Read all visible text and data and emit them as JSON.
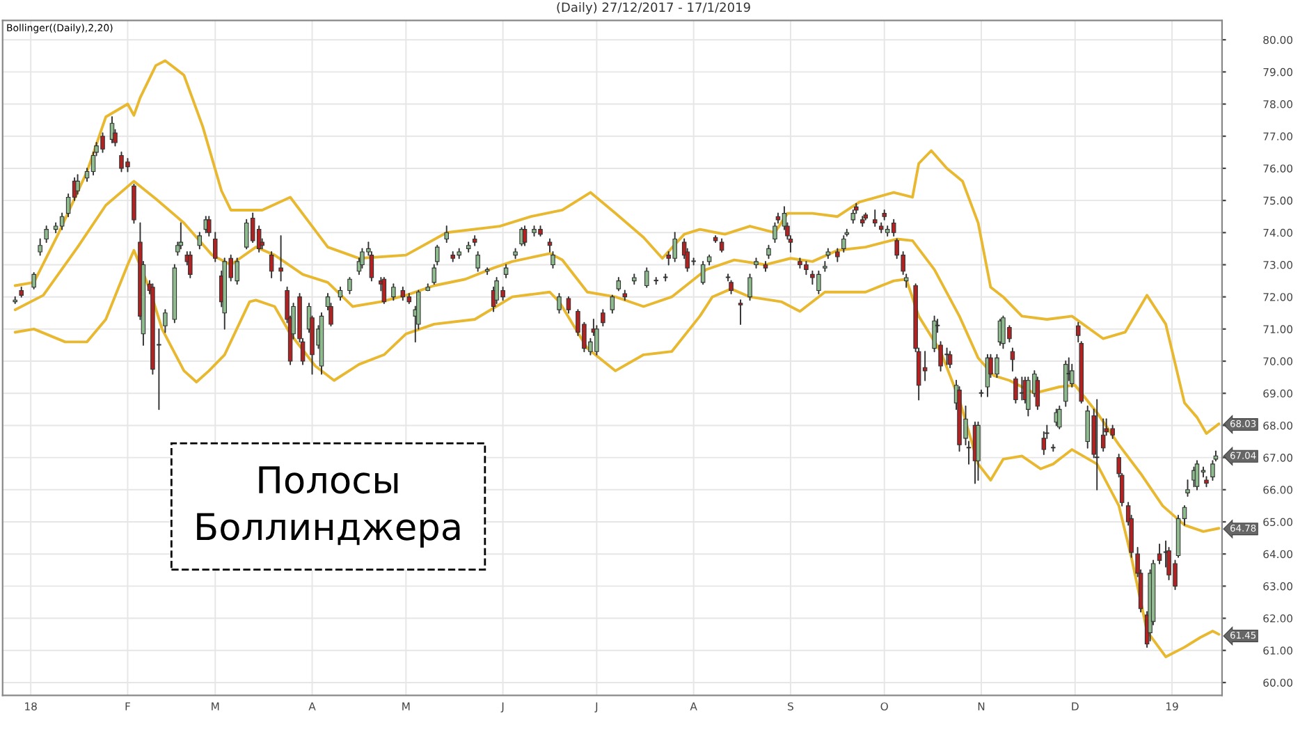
{
  "chart_data": {
    "type": "candlestick",
    "title": "(Daily) 27/12/2017 - 17/1/2019",
    "annotations": [
      "Bollinger((Daily),2,20)",
      "Полосы\nБоллинджера",
      {
        "text": "68.03",
        "x": "2019-01-17",
        "y": 68.03
      },
      {
        "text": "67.04",
        "x": "2019-01-17",
        "y": 67.04
      },
      {
        "text": "64.78",
        "x": "2019-01-17",
        "y": 64.78
      },
      {
        "text": "61.45",
        "x": "2019-01-17",
        "y": 61.45
      }
    ],
    "x": [
      "2017-12-27",
      "2017-12-29",
      "2018-01-02",
      "2018-01-04",
      "2018-01-06",
      "2018-01-09",
      "2018-01-11",
      "2018-01-13",
      "2018-01-15",
      "2018-01-16",
      "2018-01-19",
      "2018-01-21",
      "2018-01-22",
      "2018-01-24",
      "2018-01-27",
      "2018-01-28",
      "2018-01-30",
      "2018-02-01",
      "2018-02-03",
      "2018-02-05",
      "2018-02-06",
      "2018-02-08",
      "2018-02-09",
      "2018-02-11",
      "2018-02-13",
      "2018-02-16",
      "2018-02-17",
      "2018-02-18",
      "2018-02-20",
      "2018-02-21",
      "2018-02-24",
      "2018-02-26",
      "2018-02-27",
      "2018-03-01",
      "2018-03-03",
      "2018-03-04",
      "2018-03-06",
      "2018-03-08",
      "2018-03-11",
      "2018-03-13",
      "2018-03-15",
      "2018-03-16",
      "2018-03-19",
      "2018-03-22",
      "2018-03-24",
      "2018-03-25",
      "2018-03-26",
      "2018-03-28",
      "2018-03-29",
      "2018-03-31",
      "2018-04-01",
      "2018-04-03",
      "2018-04-04",
      "2018-04-06",
      "2018-04-07",
      "2018-04-10",
      "2018-04-13",
      "2018-04-16",
      "2018-04-17",
      "2018-04-19",
      "2018-04-20",
      "2018-04-23",
      "2018-04-24",
      "2018-04-27",
      "2018-04-30",
      "2018-05-02",
      "2018-05-04",
      "2018-05-05",
      "2018-05-08",
      "2018-05-10",
      "2018-05-11",
      "2018-05-14",
      "2018-05-16",
      "2018-05-18",
      "2018-05-21",
      "2018-05-23",
      "2018-05-24",
      "2018-05-27",
      "2018-05-29",
      "2018-05-30",
      "2018-06-01",
      "2018-06-02",
      "2018-06-05",
      "2018-06-07",
      "2018-06-08",
      "2018-06-11",
      "2018-06-13",
      "2018-06-16",
      "2018-06-17",
      "2018-06-19",
      "2018-06-22",
      "2018-06-25",
      "2018-06-27",
      "2018-06-29",
      "2018-06-30",
      "2018-07-01",
      "2018-07-03",
      "2018-07-06",
      "2018-07-08",
      "2018-07-10",
      "2018-07-13",
      "2018-07-17",
      "2018-07-20",
      "2018-07-23",
      "2018-07-24",
      "2018-07-26",
      "2018-07-29",
      "2018-07-30",
      "2018-08-01",
      "2018-08-04",
      "2018-08-06",
      "2018-08-08",
      "2018-08-10",
      "2018-08-12",
      "2018-08-13",
      "2018-08-16",
      "2018-08-19",
      "2018-08-21",
      "2018-08-24",
      "2018-08-25",
      "2018-08-27",
      "2018-08-28",
      "2018-08-30",
      "2018-08-31",
      "2018-09-01",
      "2018-09-04",
      "2018-09-06",
      "2018-09-08",
      "2018-09-10",
      "2018-09-12",
      "2018-09-13",
      "2018-09-16",
      "2018-09-18",
      "2018-09-19",
      "2018-09-21",
      "2018-09-22",
      "2018-09-24",
      "2018-09-25",
      "2018-09-28",
      "2018-09-30",
      "2018-10-01",
      "2018-10-02",
      "2018-10-04",
      "2018-10-05",
      "2018-10-07",
      "2018-10-08",
      "2018-10-11",
      "2018-10-12",
      "2018-10-14",
      "2018-10-17",
      "2018-10-18",
      "2018-10-19",
      "2018-10-21",
      "2018-10-22",
      "2018-10-24",
      "2018-10-25",
      "2018-10-27",
      "2018-10-28",
      "2018-10-30",
      "2018-10-31",
      "2018-11-01",
      "2018-11-03",
      "2018-11-04",
      "2018-11-06",
      "2018-11-07",
      "2018-11-08",
      "2018-11-10",
      "2018-11-11",
      "2018-11-12",
      "2018-11-14",
      "2018-11-15",
      "2018-11-16",
      "2018-11-18",
      "2018-11-19",
      "2018-11-21",
      "2018-11-22",
      "2018-11-24",
      "2018-11-25",
      "2018-11-26",
      "2018-11-28",
      "2018-11-29",
      "2018-11-30",
      "2018-12-02",
      "2018-12-03",
      "2018-12-05",
      "2018-12-07",
      "2018-12-08",
      "2018-12-10",
      "2018-12-11",
      "2018-12-13",
      "2018-12-15",
      "2018-12-16",
      "2018-12-18",
      "2018-12-19",
      "2018-12-21",
      "2018-12-22",
      "2018-12-24",
      "2018-12-25",
      "2018-12-26",
      "2018-12-28",
      "2018-12-30",
      "2018-12-31",
      "2019-01-02",
      "2019-01-03",
      "2019-01-05",
      "2019-01-06",
      "2019-01-08",
      "2019-01-09",
      "2019-01-11",
      "2019-01-12",
      "2019-01-14",
      "2019-01-15"
    ],
    "ohlc": [
      [
        71.85,
        72.0,
        71.8,
        71.9
      ],
      [
        72.2,
        72.3,
        72.0,
        72.05
      ],
      [
        72.3,
        72.75,
        72.25,
        72.7
      ],
      [
        73.4,
        73.8,
        73.3,
        73.6
      ],
      [
        73.8,
        74.2,
        73.7,
        74.1
      ],
      [
        74.1,
        74.3,
        74.0,
        74.2
      ],
      [
        74.2,
        74.6,
        74.1,
        74.5
      ],
      [
        74.6,
        75.2,
        74.5,
        75.1
      ],
      [
        75.6,
        75.7,
        75.0,
        75.1
      ],
      [
        75.3,
        75.8,
        75.2,
        75.6
      ],
      [
        75.7,
        76.0,
        75.6,
        75.9
      ],
      [
        75.9,
        76.5,
        75.8,
        76.4
      ],
      [
        76.5,
        76.8,
        76.4,
        76.7
      ],
      [
        77.0,
        77.1,
        76.5,
        76.6
      ],
      [
        76.9,
        77.6,
        76.8,
        77.4
      ],
      [
        77.1,
        77.2,
        76.7,
        76.8
      ],
      [
        76.4,
        76.5,
        75.9,
        76.0
      ],
      [
        76.2,
        76.3,
        75.9,
        76.05
      ],
      [
        75.45,
        75.5,
        74.3,
        74.4
      ],
      [
        73.7,
        74.3,
        71.3,
        71.4
      ],
      [
        70.85,
        73.1,
        70.5,
        73.0
      ],
      [
        72.4,
        72.5,
        72.1,
        72.2
      ],
      [
        72.3,
        72.4,
        69.6,
        69.75
      ],
      [
        70.5,
        71.0,
        68.5,
        70.5
      ],
      [
        71.1,
        71.6,
        70.9,
        71.5
      ],
      [
        71.3,
        73.0,
        71.2,
        72.9
      ],
      [
        73.4,
        73.7,
        73.3,
        73.6
      ],
      [
        73.6,
        74.3,
        73.5,
        73.7
      ],
      [
        73.3,
        73.4,
        73.0,
        73.1
      ],
      [
        73.3,
        73.4,
        72.6,
        72.7
      ],
      [
        73.6,
        74.0,
        73.5,
        73.9
      ],
      [
        74.1,
        74.5,
        74.0,
        74.4
      ],
      [
        74.4,
        74.5,
        73.9,
        74.0
      ],
      [
        73.8,
        74.0,
        73.1,
        73.2
      ],
      [
        72.65,
        72.8,
        71.7,
        71.85
      ],
      [
        71.5,
        73.2,
        71.0,
        73.1
      ],
      [
        73.2,
        73.3,
        72.5,
        72.6
      ],
      [
        72.5,
        73.2,
        72.4,
        73.1
      ],
      [
        73.55,
        74.4,
        73.5,
        74.3
      ],
      [
        74.45,
        74.6,
        73.7,
        73.75
      ],
      [
        74.1,
        74.2,
        73.4,
        73.5
      ],
      [
        73.7,
        73.8,
        73.5,
        73.6
      ],
      [
        73.3,
        73.4,
        72.6,
        72.8
      ],
      [
        72.9,
        73.9,
        72.5,
        72.8
      ],
      [
        72.2,
        72.3,
        71.2,
        71.3
      ],
      [
        71.35,
        71.4,
        69.9,
        70.0
      ],
      [
        70.85,
        71.8,
        70.7,
        71.7
      ],
      [
        72.0,
        72.1,
        70.6,
        70.7
      ],
      [
        70.6,
        70.7,
        69.9,
        70.0
      ],
      [
        71.0,
        71.8,
        70.9,
        71.7
      ],
      [
        71.35,
        71.4,
        69.6,
        70.2
      ],
      [
        70.5,
        71.1,
        70.4,
        71.0
      ],
      [
        69.85,
        71.5,
        69.6,
        71.4
      ],
      [
        71.7,
        72.1,
        71.6,
        72.0
      ],
      [
        71.7,
        71.8,
        71.1,
        71.15
      ],
      [
        72.0,
        72.3,
        71.9,
        72.2
      ],
      [
        72.2,
        72.6,
        72.1,
        72.55
      ],
      [
        72.8,
        73.2,
        72.7,
        73.1
      ],
      [
        73.0,
        73.5,
        72.9,
        73.4
      ],
      [
        73.4,
        73.7,
        73.3,
        73.5
      ],
      [
        73.3,
        73.4,
        72.5,
        72.6
      ],
      [
        72.5,
        72.6,
        72.2,
        72.4
      ],
      [
        72.55,
        72.6,
        71.8,
        71.85
      ],
      [
        72.0,
        72.4,
        71.9,
        72.3
      ],
      [
        72.2,
        72.3,
        71.9,
        72.0
      ],
      [
        72.0,
        72.1,
        71.8,
        71.85
      ],
      [
        71.4,
        71.7,
        70.6,
        71.6
      ],
      [
        71.15,
        72.2,
        71.0,
        72.15
      ],
      [
        72.2,
        72.4,
        72.2,
        72.3
      ],
      [
        72.45,
        73.0,
        72.4,
        72.9
      ],
      [
        73.1,
        73.6,
        73.0,
        73.55
      ],
      [
        73.8,
        74.2,
        73.7,
        74.0
      ],
      [
        73.3,
        73.4,
        73.1,
        73.2
      ],
      [
        73.3,
        73.5,
        73.2,
        73.4
      ],
      [
        73.5,
        73.7,
        73.4,
        73.6
      ],
      [
        73.8,
        73.9,
        73.6,
        73.7
      ],
      [
        72.9,
        73.4,
        72.8,
        73.3
      ],
      [
        72.8,
        72.9,
        72.7,
        72.85
      ],
      [
        72.2,
        72.3,
        71.55,
        71.7
      ],
      [
        71.9,
        72.6,
        71.8,
        72.5
      ],
      [
        72.2,
        72.3,
        71.9,
        72.0
      ],
      [
        72.7,
        73.0,
        72.6,
        72.9
      ],
      [
        73.3,
        73.5,
        73.2,
        73.4
      ],
      [
        73.65,
        74.15,
        73.6,
        74.1
      ],
      [
        74.1,
        74.2,
        73.6,
        73.7
      ],
      [
        74.0,
        74.2,
        73.9,
        74.1
      ],
      [
        74.1,
        74.2,
        73.9,
        73.95
      ],
      [
        73.7,
        73.8,
        73.4,
        73.6
      ],
      [
        73.0,
        73.4,
        72.9,
        73.3
      ],
      [
        71.6,
        72.1,
        71.5,
        72.0
      ],
      [
        71.95,
        72.0,
        71.5,
        71.6
      ],
      [
        71.55,
        71.6,
        70.8,
        70.9
      ],
      [
        71.15,
        71.2,
        70.3,
        70.4
      ],
      [
        70.3,
        70.7,
        70.2,
        70.6
      ],
      [
        71.0,
        71.3,
        70.8,
        70.9
      ],
      [
        70.3,
        71.1,
        70.2,
        71.0
      ],
      [
        71.5,
        71.6,
        71.1,
        71.2
      ],
      [
        71.6,
        72.05,
        71.5,
        72.0
      ],
      [
        72.25,
        72.6,
        72.2,
        72.5
      ],
      [
        72.1,
        72.2,
        71.9,
        72.0
      ],
      [
        72.5,
        72.7,
        72.4,
        72.6
      ],
      [
        72.35,
        72.9,
        72.3,
        72.8
      ],
      [
        72.5,
        72.6,
        72.4,
        72.5
      ],
      [
        72.6,
        72.7,
        72.5,
        72.6
      ],
      [
        73.3,
        73.4,
        73.0,
        73.2
      ],
      [
        73.2,
        74.0,
        73.1,
        73.8
      ],
      [
        73.7,
        73.8,
        73.2,
        73.3
      ],
      [
        73.4,
        73.5,
        72.8,
        72.9
      ],
      [
        73.1,
        73.2,
        73.0,
        73.1
      ],
      [
        72.45,
        73.1,
        72.4,
        73.0
      ],
      [
        73.1,
        73.3,
        73.0,
        73.25
      ],
      [
        73.85,
        73.9,
        73.7,
        73.75
      ],
      [
        73.7,
        73.8,
        73.4,
        73.45
      ],
      [
        72.6,
        72.7,
        72.5,
        72.6
      ],
      [
        72.45,
        72.5,
        72.1,
        72.2
      ],
      [
        71.8,
        71.9,
        71.15,
        71.75
      ],
      [
        72.0,
        72.7,
        71.9,
        72.6
      ],
      [
        73.0,
        73.2,
        72.9,
        73.1
      ],
      [
        73.0,
        73.1,
        72.8,
        72.9
      ],
      [
        73.3,
        73.6,
        73.2,
        73.5
      ],
      [
        73.8,
        74.3,
        73.7,
        74.2
      ],
      [
        74.5,
        74.6,
        74.3,
        74.4
      ],
      [
        74.2,
        74.8,
        74.1,
        74.6
      ],
      [
        74.2,
        74.3,
        73.8,
        73.9
      ],
      [
        73.8,
        73.9,
        73.4,
        73.7
      ],
      [
        73.1,
        73.2,
        72.9,
        73.0
      ],
      [
        73.0,
        73.1,
        72.7,
        72.85
      ],
      [
        72.7,
        72.8,
        72.4,
        72.6
      ],
      [
        72.2,
        72.8,
        72.1,
        72.7
      ],
      [
        72.9,
        73.1,
        72.8,
        72.95
      ],
      [
        73.3,
        73.5,
        73.2,
        73.4
      ],
      [
        73.4,
        73.5,
        73.1,
        73.25
      ],
      [
        73.5,
        73.9,
        73.4,
        73.8
      ],
      [
        73.95,
        74.1,
        73.9,
        74.0
      ],
      [
        74.4,
        74.7,
        74.3,
        74.6
      ],
      [
        74.8,
        74.9,
        74.6,
        74.7
      ],
      [
        74.4,
        74.5,
        74.2,
        74.3
      ],
      [
        74.55,
        74.6,
        74.4,
        74.45
      ],
      [
        74.4,
        74.7,
        74.2,
        74.3
      ],
      [
        74.2,
        74.3,
        74.0,
        74.1
      ],
      [
        74.6,
        74.7,
        74.4,
        74.5
      ],
      [
        74.0,
        74.2,
        73.9,
        74.1
      ],
      [
        74.3,
        74.4,
        73.9,
        74.0
      ],
      [
        73.75,
        73.8,
        73.2,
        73.3
      ],
      [
        73.3,
        73.4,
        72.7,
        72.8
      ],
      [
        72.5,
        72.7,
        72.3,
        72.6
      ],
      [
        72.35,
        72.4,
        70.3,
        70.4
      ],
      [
        70.3,
        70.4,
        68.8,
        69.25
      ],
      [
        69.8,
        70.3,
        69.4,
        69.7
      ],
      [
        70.4,
        71.4,
        70.3,
        71.25
      ],
      [
        71.1,
        71.3,
        70.9,
        71.1
      ],
      [
        70.5,
        70.6,
        69.7,
        69.85
      ],
      [
        70.2,
        70.4,
        69.9,
        70.2
      ],
      [
        70.2,
        70.3,
        69.8,
        69.9
      ],
      [
        68.7,
        69.4,
        68.5,
        69.25
      ],
      [
        69.1,
        69.2,
        67.2,
        67.4
      ],
      [
        67.6,
        68.6,
        67.4,
        68.2
      ],
      [
        67.3,
        67.5,
        66.8,
        67.3
      ],
      [
        68.0,
        68.1,
        66.2,
        66.9
      ],
      [
        66.9,
        68.1,
        66.3,
        68.0
      ],
      [
        69.0,
        69.1,
        68.9,
        69.0
      ],
      [
        69.2,
        70.2,
        68.9,
        70.1
      ],
      [
        70.1,
        70.2,
        69.5,
        69.6
      ],
      [
        69.6,
        70.2,
        69.5,
        70.1
      ],
      [
        70.6,
        71.3,
        70.5,
        71.25
      ],
      [
        70.55,
        71.4,
        70.4,
        71.35
      ],
      [
        71.05,
        71.1,
        70.6,
        70.7
      ],
      [
        70.3,
        70.4,
        69.7,
        70.05
      ],
      [
        69.45,
        69.5,
        68.7,
        68.8
      ],
      [
        69.0,
        69.5,
        68.8,
        69.0
      ],
      [
        69.4,
        69.5,
        68.7,
        68.8
      ],
      [
        68.5,
        69.5,
        68.3,
        69.4
      ],
      [
        69.0,
        69.7,
        68.9,
        69.6
      ],
      [
        69.4,
        69.5,
        68.5,
        68.6
      ],
      [
        67.6,
        67.8,
        67.1,
        67.25
      ],
      [
        67.75,
        68.0,
        67.6,
        67.75
      ],
      [
        67.3,
        67.4,
        67.2,
        67.3
      ],
      [
        68.1,
        68.5,
        68.0,
        68.4
      ],
      [
        67.95,
        68.6,
        67.9,
        68.5
      ],
      [
        68.75,
        70.0,
        68.6,
        69.9
      ],
      [
        69.6,
        70.1,
        69.4,
        69.6
      ],
      [
        69.3,
        69.9,
        69.2,
        69.7
      ],
      [
        71.1,
        71.2,
        70.6,
        70.8
      ],
      [
        70.55,
        70.6,
        68.7,
        68.75
      ],
      [
        67.5,
        68.6,
        67.3,
        68.45
      ],
      [
        68.3,
        68.5,
        67.0,
        67.1
      ],
      [
        67.0,
        68.8,
        66.0,
        67.0
      ],
      [
        67.7,
        68.2,
        67.2,
        67.3
      ],
      [
        67.9,
        68.2,
        67.7,
        67.8
      ],
      [
        67.9,
        68.0,
        67.6,
        67.7
      ],
      [
        67.0,
        67.1,
        66.4,
        66.5
      ],
      [
        66.45,
        66.5,
        65.5,
        65.6
      ],
      [
        65.5,
        65.6,
        64.9,
        65.0
      ],
      [
        65.1,
        65.2,
        63.9,
        64.05
      ],
      [
        64.0,
        64.2,
        63.3,
        63.4
      ],
      [
        63.4,
        63.5,
        62.2,
        62.3
      ],
      [
        62.1,
        62.2,
        61.1,
        61.2
      ],
      [
        61.55,
        63.5,
        61.3,
        63.4
      ],
      [
        61.9,
        63.8,
        61.8,
        63.7
      ],
      [
        64.0,
        64.3,
        63.7,
        63.8
      ],
      [
        64.05,
        64.4,
        63.6,
        64.05
      ],
      [
        64.1,
        64.2,
        63.2,
        63.35
      ],
      [
        63.7,
        63.8,
        62.9,
        63.0
      ],
      [
        63.95,
        65.2,
        63.9,
        65.1
      ],
      [
        65.1,
        65.5,
        64.9,
        65.45
      ],
      [
        65.9,
        66.3,
        65.8,
        66.0
      ],
      [
        66.3,
        66.7,
        66.1,
        66.6
      ],
      [
        66.1,
        66.9,
        66.0,
        66.8
      ],
      [
        66.55,
        66.7,
        66.4,
        66.6
      ],
      [
        66.3,
        66.4,
        66.1,
        66.2
      ],
      [
        66.4,
        66.9,
        66.3,
        66.8
      ],
      [
        66.95,
        67.2,
        66.9,
        67.05
      ]
    ],
    "series": [
      {
        "type": "line",
        "color": "#e8b830",
        "x": [
          "2017-12-27",
          "2018-01-02",
          "2018-01-10",
          "2018-01-19",
          "2018-01-25",
          "2018-02-01",
          "2018-02-03",
          "2018-02-05",
          "2018-02-10",
          "2018-02-13",
          "2018-02-19",
          "2018-02-25",
          "2018-03-03",
          "2018-03-06",
          "2018-03-16",
          "2018-03-25",
          "2018-04-06",
          "2018-04-16",
          "2018-05-01",
          "2018-05-14",
          "2018-05-31",
          "2018-06-10",
          "2018-06-20",
          "2018-06-29",
          "2018-07-07",
          "2018-07-16",
          "2018-07-22",
          "2018-07-29",
          "2018-08-03",
          "2018-08-11",
          "2018-08-19",
          "2018-08-27",
          "2018-08-31",
          "2018-09-08",
          "2018-09-16",
          "2018-09-23",
          "2018-10-04",
          "2018-10-10",
          "2018-10-12",
          "2018-10-16",
          "2018-10-21",
          "2018-10-26",
          "2018-10-31",
          "2018-11-04",
          "2018-11-08",
          "2018-11-14",
          "2018-11-22",
          "2018-11-30",
          "2018-12-10",
          "2018-12-17",
          "2018-12-24",
          "2018-12-30",
          "2019-01-05",
          "2019-01-09",
          "2019-01-12",
          "2019-01-16"
        ],
        "values": [
          72.35,
          72.45,
          74.0,
          75.9,
          77.6,
          78.0,
          77.65,
          78.2,
          79.2,
          79.35,
          78.9,
          77.3,
          75.3,
          74.7,
          74.7,
          75.1,
          73.55,
          73.2,
          73.3,
          74.0,
          74.2,
          74.5,
          74.7,
          75.25,
          74.6,
          73.85,
          73.2,
          73.95,
          74.1,
          73.95,
          74.2,
          74.0,
          74.6,
          74.6,
          74.5,
          74.95,
          75.25,
          75.1,
          76.15,
          76.55,
          76.0,
          75.6,
          74.3,
          72.3,
          72.0,
          71.4,
          71.3,
          71.4,
          70.7,
          70.9,
          72.05,
          71.15,
          68.7,
          68.25,
          67.75,
          68.05
        ]
      },
      {
        "type": "line",
        "color": "#e8b830",
        "x": [
          "2017-12-27",
          "2018-01-05",
          "2018-01-16",
          "2018-01-25",
          "2018-02-03",
          "2018-02-10",
          "2018-02-19",
          "2018-02-28",
          "2018-03-06",
          "2018-03-14",
          "2018-03-20",
          "2018-03-29",
          "2018-04-06",
          "2018-04-14",
          "2018-04-23",
          "2018-05-01",
          "2018-05-10",
          "2018-05-20",
          "2018-05-29",
          "2018-06-04",
          "2018-06-16",
          "2018-06-20",
          "2018-06-28",
          "2018-07-07",
          "2018-07-16",
          "2018-07-25",
          "2018-08-05",
          "2018-08-14",
          "2018-08-24",
          "2018-09-01",
          "2018-09-08",
          "2018-09-16",
          "2018-09-25",
          "2018-10-05",
          "2018-10-10",
          "2018-10-17",
          "2018-10-25",
          "2018-10-31",
          "2018-11-05",
          "2018-11-10",
          "2018-11-18",
          "2018-11-26",
          "2018-12-01",
          "2018-12-08",
          "2018-12-15",
          "2018-12-22",
          "2018-12-29",
          "2019-01-05",
          "2019-01-11",
          "2019-01-16"
        ],
        "values": [
          71.6,
          72.05,
          73.55,
          74.85,
          75.6,
          75.05,
          74.3,
          73.3,
          73.0,
          73.55,
          73.3,
          72.7,
          72.45,
          71.7,
          71.85,
          72.05,
          72.35,
          72.55,
          72.9,
          73.1,
          73.35,
          73.15,
          72.15,
          72.0,
          71.7,
          72.0,
          72.85,
          73.15,
          73.0,
          73.2,
          73.1,
          73.45,
          73.55,
          73.8,
          73.75,
          72.85,
          71.4,
          70.1,
          69.55,
          69.4,
          69.0,
          69.2,
          69.25,
          68.4,
          67.4,
          66.5,
          65.5,
          64.9,
          64.7,
          64.8
        ]
      },
      {
        "type": "line",
        "color": "#e8b830",
        "x": [
          "2017-12-27",
          "2018-01-02",
          "2018-01-12",
          "2018-01-19",
          "2018-01-25",
          "2018-02-01",
          "2018-02-03",
          "2018-02-08",
          "2018-02-12",
          "2018-02-19",
          "2018-02-23",
          "2018-02-27",
          "2018-03-04",
          "2018-03-12",
          "2018-03-14",
          "2018-03-20",
          "2018-03-25",
          "2018-04-02",
          "2018-04-08",
          "2018-04-16",
          "2018-04-24",
          "2018-05-01",
          "2018-05-10",
          "2018-05-23",
          "2018-06-04",
          "2018-06-16",
          "2018-06-19",
          "2018-06-28",
          "2018-07-07",
          "2018-07-16",
          "2018-07-25",
          "2018-08-03",
          "2018-08-07",
          "2018-08-13",
          "2018-08-19",
          "2018-08-29",
          "2018-09-04",
          "2018-09-12",
          "2018-09-25",
          "2018-10-04",
          "2018-10-08",
          "2018-10-12",
          "2018-10-19",
          "2018-10-25",
          "2018-10-31",
          "2018-11-04",
          "2018-11-08",
          "2018-11-14",
          "2018-11-20",
          "2018-11-24",
          "2018-11-30",
          "2018-12-08",
          "2018-12-15",
          "2018-12-19",
          "2018-12-24",
          "2018-12-30",
          "2019-01-05",
          "2019-01-10",
          "2019-01-14",
          "2019-01-16"
        ],
        "values": [
          70.9,
          71.0,
          70.6,
          70.6,
          71.3,
          73.0,
          73.45,
          72.25,
          71.0,
          69.7,
          69.35,
          69.7,
          70.2,
          71.85,
          71.9,
          71.7,
          70.85,
          69.85,
          69.4,
          69.9,
          70.2,
          70.85,
          71.15,
          71.3,
          72.0,
          72.15,
          71.85,
          70.4,
          69.7,
          70.2,
          70.3,
          71.4,
          72.0,
          72.25,
          72.0,
          71.85,
          71.55,
          72.15,
          72.15,
          72.5,
          72.55,
          71.4,
          70.3,
          68.8,
          66.8,
          66.3,
          66.95,
          67.05,
          66.65,
          66.8,
          67.25,
          66.8,
          65.5,
          63.9,
          61.6,
          60.8,
          61.1,
          61.4,
          61.6,
          61.5
        ]
      }
    ],
    "xlim": [
      "2017-12-23",
      "2019-01-17"
    ],
    "xticks": [
      {
        "value": "2018-01-01",
        "label": "18"
      },
      {
        "value": "2018-02-01",
        "label": "F"
      },
      {
        "value": "2018-03-01",
        "label": "M"
      },
      {
        "value": "2018-04-01",
        "label": "A"
      },
      {
        "value": "2018-05-01",
        "label": "M"
      },
      {
        "value": "2018-06-01",
        "label": "J"
      },
      {
        "value": "2018-07-01",
        "label": "J"
      },
      {
        "value": "2018-08-01",
        "label": "A"
      },
      {
        "value": "2018-09-01",
        "label": "S"
      },
      {
        "value": "2018-10-01",
        "label": "O"
      },
      {
        "value": "2018-11-01",
        "label": "N"
      },
      {
        "value": "2018-12-01",
        "label": "D"
      },
      {
        "value": "2019-01-01",
        "label": "19"
      }
    ],
    "ylim": [
      59.6,
      80.6
    ],
    "yticks": [
      {
        "value": 60,
        "label": "60.00"
      },
      {
        "value": 61,
        "label": "61.00"
      },
      {
        "value": 62,
        "label": "62.00"
      },
      {
        "value": 63,
        "label": "63.00"
      },
      {
        "value": 64,
        "label": "64.00"
      },
      {
        "value": 65,
        "label": "65.00"
      },
      {
        "value": 66,
        "label": "66.00"
      },
      {
        "value": 67,
        "label": "67.00"
      },
      {
        "value": 68,
        "label": "68.00"
      },
      {
        "value": 69,
        "label": "69.00"
      },
      {
        "value": 70,
        "label": "70.00"
      },
      {
        "value": 71,
        "label": "71.00"
      },
      {
        "value": 72,
        "label": "72.00"
      },
      {
        "value": 73,
        "label": "73.00"
      },
      {
        "value": 74,
        "label": "74.00"
      },
      {
        "value": 75,
        "label": "75.00"
      },
      {
        "value": 76,
        "label": "76.00"
      },
      {
        "value": 77,
        "label": "77.00"
      },
      {
        "value": 78,
        "label": "78.00"
      },
      {
        "value": 79,
        "label": "79.00"
      },
      {
        "value": 80,
        "label": "80.00"
      }
    ],
    "grid": true
  }
}
